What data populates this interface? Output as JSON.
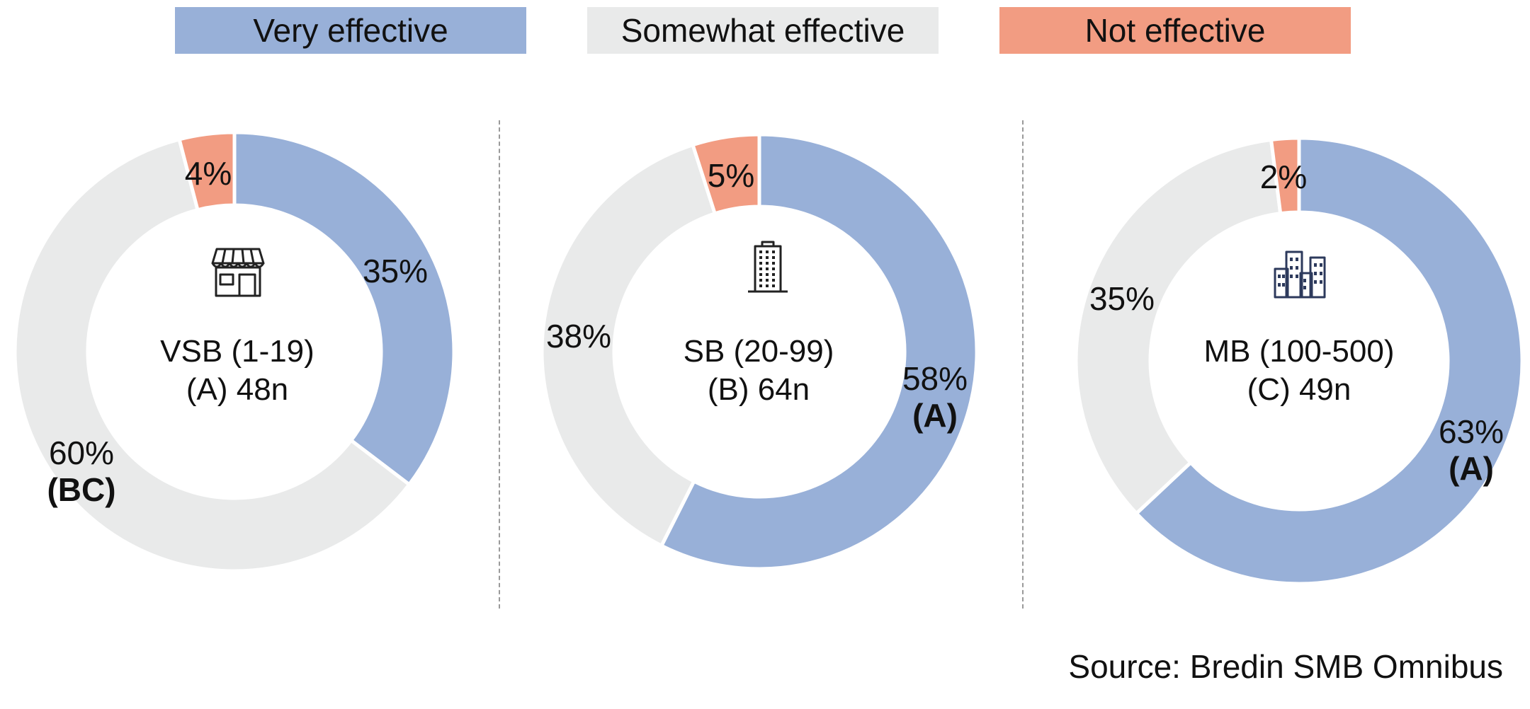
{
  "legend": [
    {
      "label": "Very effective",
      "color": "#98b0d8"
    },
    {
      "label": "Somewhat effective",
      "color": "#e9eaea"
    },
    {
      "label": "Not effective",
      "color": "#f29c82"
    }
  ],
  "chart_data": [
    {
      "type": "pie",
      "variant": "donut",
      "categories": [
        "Very effective",
        "Somewhat effective",
        "Not effective"
      ],
      "values": [
        35,
        60,
        4
      ],
      "labels": [
        "35%",
        "60%",
        "4%"
      ],
      "significance": [
        "",
        "(BC)",
        ""
      ],
      "center": {
        "line1": "VSB (1-19)",
        "line2": "(A) 48n"
      },
      "icon": "storefront-icon"
    },
    {
      "type": "pie",
      "variant": "donut",
      "categories": [
        "Very effective",
        "Somewhat effective",
        "Not effective"
      ],
      "values": [
        58,
        38,
        5
      ],
      "labels": [
        "58%",
        "38%",
        "5%"
      ],
      "significance": [
        "(A)",
        "",
        ""
      ],
      "center": {
        "line1": "SB (20-99)",
        "line2": "(B) 64n"
      },
      "icon": "office-building-icon"
    },
    {
      "type": "pie",
      "variant": "donut",
      "categories": [
        "Very effective",
        "Somewhat effective",
        "Not effective"
      ],
      "values": [
        63,
        35,
        2
      ],
      "labels": [
        "63%",
        "35%",
        "2%"
      ],
      "significance": [
        "(A)",
        "",
        ""
      ],
      "center": {
        "line1": "MB (100-500)",
        "line2": "(C) 49n"
      },
      "icon": "city-buildings-icon"
    }
  ],
  "source": "Source: Bredin SMB Omnibus"
}
